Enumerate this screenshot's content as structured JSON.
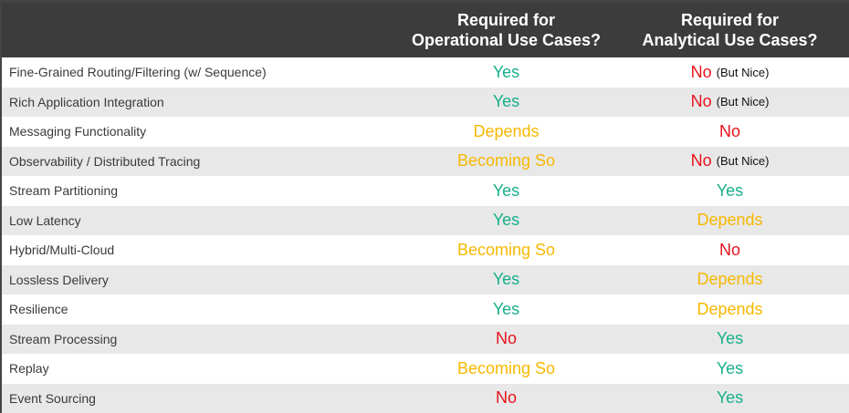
{
  "table": {
    "header": [
      [],
      [
        "Required for",
        "Operational Use Cases?"
      ],
      [
        "Required for",
        "Analytical Use Cases?"
      ]
    ],
    "colors": {
      "Yes": "#17b08c",
      "No": "#e8121c",
      "Depends": "#f6b800",
      "Becoming So": "#f6b800"
    },
    "rows": [
      [
        "Fine-Grained Routing/Filtering (w/ Sequence)",
        {
          "text": "Yes"
        },
        {
          "text": "No",
          "note": "(But Nice)"
        }
      ],
      [
        "Rich Application Integration",
        {
          "text": "Yes"
        },
        {
          "text": "No",
          "note": "(But Nice)"
        }
      ],
      [
        "Messaging Functionality",
        {
          "text": "Depends"
        },
        {
          "text": "No"
        }
      ],
      [
        "Observability / Distributed Tracing",
        {
          "text": "Becoming So"
        },
        {
          "text": "No",
          "note": "(But Nice)"
        }
      ],
      [
        "Stream Partitioning",
        {
          "text": "Yes"
        },
        {
          "text": "Yes"
        }
      ],
      [
        "Low Latency",
        {
          "text": "Yes"
        },
        {
          "text": "Depends"
        }
      ],
      [
        "Hybrid/Multi-Cloud",
        {
          "text": "Becoming So"
        },
        {
          "text": "No"
        }
      ],
      [
        "Lossless Delivery",
        {
          "text": "Yes"
        },
        {
          "text": "Depends"
        }
      ],
      [
        "Resilience",
        {
          "text": "Yes"
        },
        {
          "text": "Depends"
        }
      ],
      [
        "Stream Processing",
        {
          "text": "No"
        },
        {
          "text": "Yes"
        }
      ],
      [
        "Replay",
        {
          "text": "Becoming So"
        },
        {
          "text": "Yes"
        }
      ],
      [
        "Event Sourcing",
        {
          "text": "No"
        },
        {
          "text": "Yes"
        }
      ]
    ]
  }
}
